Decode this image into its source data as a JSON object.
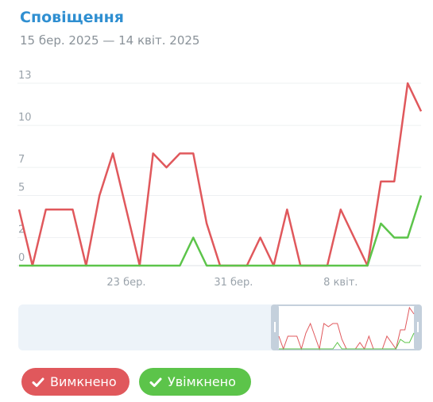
{
  "chart_data": {
    "type": "line",
    "title": "Сповіщення",
    "subtitle": "15 бер. 2025 — 14 квіт. 2025",
    "categories": [
      null,
      null,
      null,
      null,
      null,
      null,
      null,
      null,
      "23 бер.",
      null,
      null,
      null,
      null,
      null,
      null,
      null,
      "31 бер.",
      null,
      null,
      null,
      null,
      null,
      null,
      null,
      "8 квіт.",
      null,
      null,
      null,
      null,
      null,
      null
    ],
    "series": [
      {
        "name": "Вимкнено",
        "color": "#e0585c",
        "values": [
          4,
          0,
          4,
          4,
          4,
          0,
          5,
          8,
          4,
          0,
          8,
          7,
          8,
          8,
          3,
          0,
          0,
          0,
          2,
          0,
          4,
          0,
          0,
          0,
          4,
          2,
          0,
          6,
          6,
          13,
          11
        ]
      },
      {
        "name": "Увімкнено",
        "color": "#5cc44a",
        "values": [
          0,
          0,
          0,
          0,
          0,
          0,
          0,
          0,
          0,
          0,
          0,
          0,
          0,
          2,
          0,
          0,
          0,
          0,
          0,
          0,
          0,
          0,
          0,
          0,
          0,
          0,
          0,
          3,
          2,
          2,
          5
        ]
      }
    ],
    "ylim": [
      0,
      13
    ],
    "yticks": [
      0,
      2,
      5,
      7,
      10,
      13
    ],
    "grid": true
  }
}
